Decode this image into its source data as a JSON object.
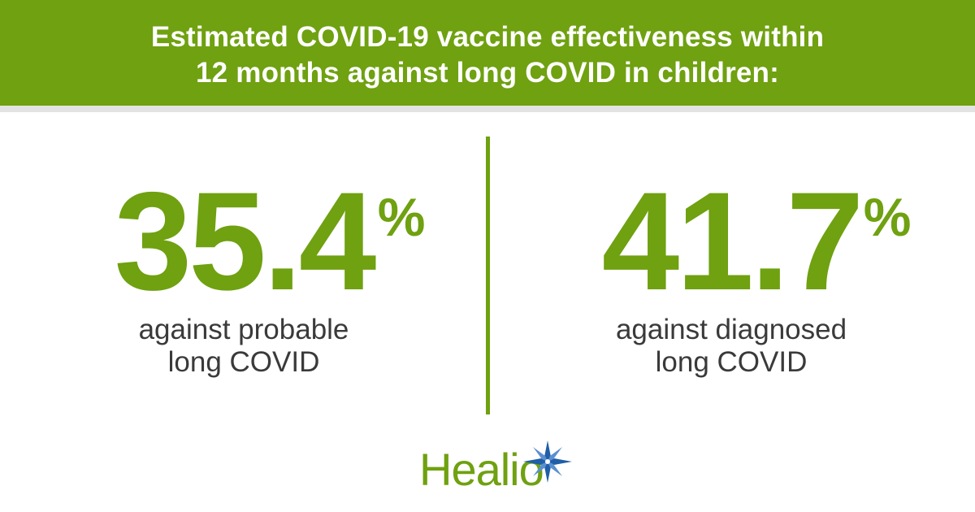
{
  "header": {
    "line1": "Estimated COVID-19 vaccine effectiveness within",
    "line2": "12 months against long COVID in children:"
  },
  "stats": [
    {
      "value": "35.4",
      "unit": "%",
      "desc_line1": "against probable",
      "desc_line2": "long COVID"
    },
    {
      "value": "41.7",
      "unit": "%",
      "desc_line1": "against diagnosed",
      "desc_line2": "long COVID"
    }
  ],
  "logo": {
    "text": "Healio",
    "icon": "star-burst-icon"
  },
  "colors": {
    "brand_green": "#6fa110",
    "text_dark": "#3a3a3a",
    "star_blue": "#1f5fa8",
    "star_light": "#5b8fd0"
  }
}
